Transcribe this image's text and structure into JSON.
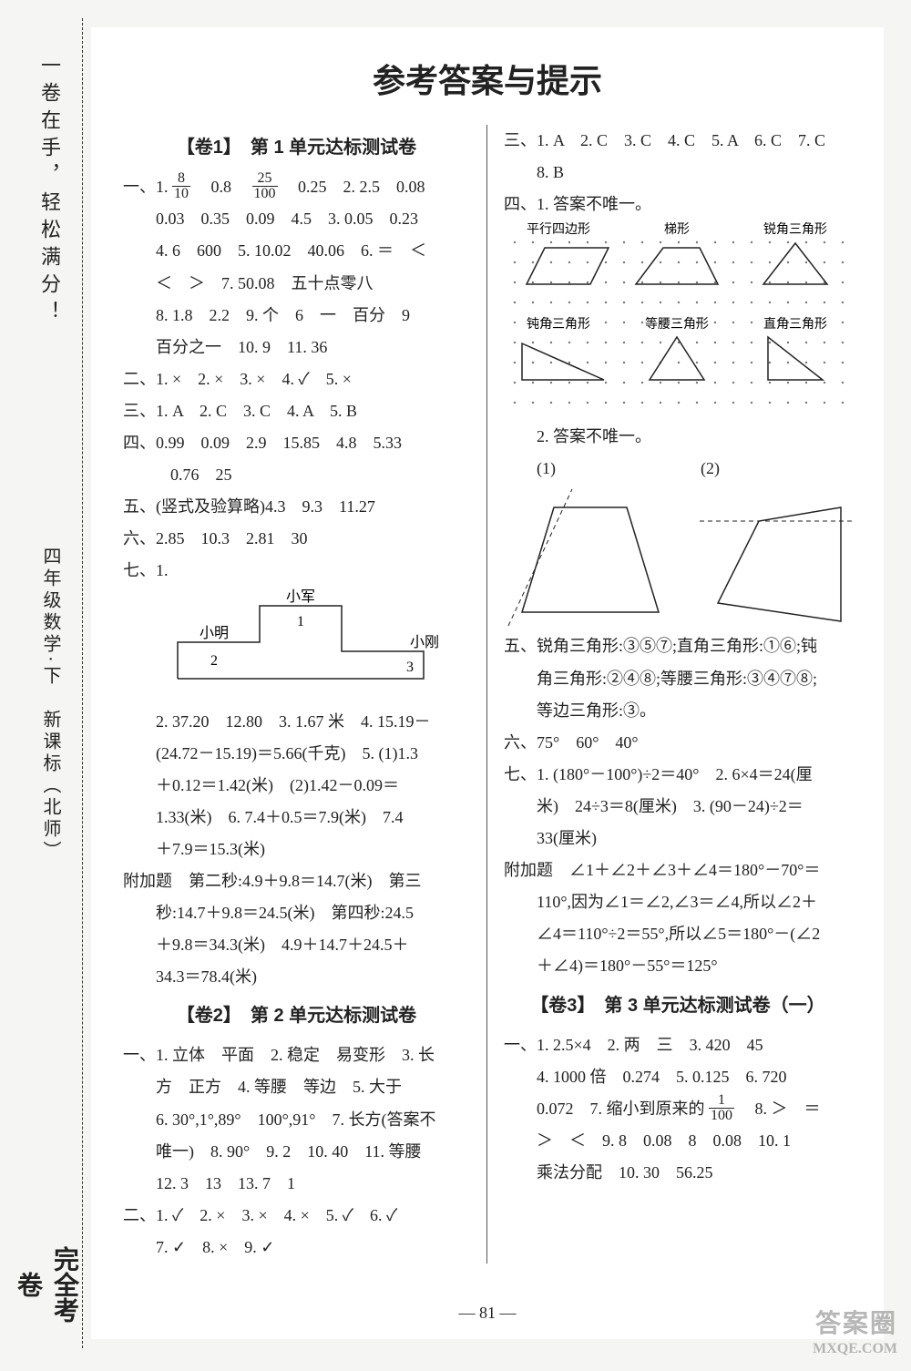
{
  "spine": {
    "slogan": "一卷在手，轻松满分！",
    "book_title": "四年级数学·下　新课标（北师）",
    "badge": "完全考卷"
  },
  "title": "参考答案与提示",
  "page_number": "— 81 —",
  "watermark": {
    "line1": "答案圈",
    "line2": "MXQE.COM"
  },
  "left": {
    "paper1_title": "【卷1】　第 1 单元达标测试卷",
    "p1_l1a": "一、1.",
    "p1_l1b": "　0.8　",
    "p1_l1c": "　0.25　2. 2.5　0.08",
    "p1_l2": "0.03　0.35　0.09　4.5　3. 0.05　0.23",
    "p1_l3": "4. 6　600　5. 10.02　40.06　6. ＝　＜",
    "p1_l4": "＜　＞　7. 50.08　五十点零八",
    "p1_l5": "8. 1.8　2.2　9. 个　6　一　百分　9",
    "p1_l6": "百分之一　10. 9　11. 36",
    "p1_s2": "二、1. ×　2. ×　3. ×　4. ✓　5. ×",
    "p1_s3": "三、1. A　2. C　3. C　4. A　5. B",
    "p1_s4a": "四、0.99　0.09　2.9　15.85　4.8　5.33",
    "p1_s4b": "0.76　25",
    "p1_s5": "五、(竖式及验算略)4.3　9.3　11.27",
    "p1_s6": "六、2.85　10.3　2.81　30",
    "p1_s7": "七、1.",
    "diagram_labels": {
      "a": "小军",
      "b": "小明",
      "c": "小刚",
      "n1": "1",
      "n2": "2",
      "n3": "3"
    },
    "p1_s7_2": "2. 37.20　12.80　3. 1.67 米　4. 15.19－",
    "p1_s7_3": "(24.72－15.19)＝5.66(千克)　5. (1)1.3",
    "p1_s7_4": "＋0.12＝1.42(米)　(2)1.42－0.09＝",
    "p1_s7_5": "1.33(米)　6. 7.4＋0.5＝7.9(米)　7.4",
    "p1_s7_6": "＋7.9＝15.3(米)",
    "p1_extra1": "附加题　第二秒:4.9＋9.8＝14.7(米)　第三",
    "p1_extra2": "秒:14.7＋9.8＝24.5(米)　第四秒:24.5",
    "p1_extra3": "＋9.8＝34.3(米)　4.9＋14.7＋24.5＋",
    "p1_extra4": "34.3＝78.4(米)",
    "paper2_title": "【卷2】　第 2 单元达标测试卷",
    "p2_l1": "一、1. 立体　平面　2. 稳定　易变形　3. 长",
    "p2_l2": "方　正方　4. 等腰　等边　5. 大于",
    "p2_l3": "6. 30°,1°,89°　100°,91°　7. 长方(答案不",
    "p2_l4": "唯一)　8. 90°　9. 2　10. 40　11. 等腰",
    "p2_l5": "12. 3　13　13. 7　1",
    "p2_s2a": "二、1. ✓　2. ×　3. ×　4. ×　5. ✓　6. ✓",
    "p2_s2b": "7. ✓　8. ×　9. ✓"
  },
  "right": {
    "r_s3a": "三、1. A　2. C　3. C　4. C　5. A　6. C　7. C",
    "r_s3b": "8. B",
    "r_s4": "四、1. 答案不唯一。",
    "shape_labels": {
      "s1": "平行四边形",
      "s2": "梯形",
      "s3": "锐角三角形",
      "s4": "钝角三角形",
      "s5": "等腰三角形",
      "s6": "直角三角形"
    },
    "r_s4_2": "2. 答案不唯一。",
    "r_s4_2a": "(1)",
    "r_s4_2b": "(2)",
    "r_s5": "五、锐角三角形:③⑤⑦;直角三角形:①⑥;钝",
    "r_s5b": "角三角形:②④⑧;等腰三角形:③④⑦⑧;",
    "r_s5c": "等边三角形:③。",
    "r_s6": "六、75°　60°　40°",
    "r_s7a": "七、1. (180°－100°)÷2＝40°　2. 6×4＝24(厘",
    "r_s7b": "米)　24÷3＝8(厘米)　3. (90－24)÷2＝",
    "r_s7c": "33(厘米)",
    "r_extra1": "附加题　∠1＋∠2＋∠3＋∠4＝180°－70°＝",
    "r_extra2": "110°,因为∠1＝∠2,∠3＝∠4,所以∠2＋",
    "r_extra3": "∠4＝110°÷2＝55°,所以∠5＝180°－(∠2",
    "r_extra4": "＋∠4)＝180°－55°＝125°",
    "paper3_title": "【卷3】　第 3 单元达标测试卷（一）",
    "p3_l1": "一、1. 2.5×4　2. 两　三　3. 420　45",
    "p3_l2": "4. 1000 倍　0.274　5. 0.125　6. 720",
    "p3_l3a": "0.072　7. 缩小到原来的",
    "p3_l3b": "　8. ＞　＝",
    "p3_l4": "＞　＜　9. 8　0.08　8　0.08　10. 1",
    "p3_l5": "乘法分配　10. 30　56.25"
  },
  "fractions": {
    "f1": {
      "n": "8",
      "d": "10"
    },
    "f2": {
      "n": "25",
      "d": "100"
    },
    "f3": {
      "n": "1",
      "d": "100"
    }
  }
}
